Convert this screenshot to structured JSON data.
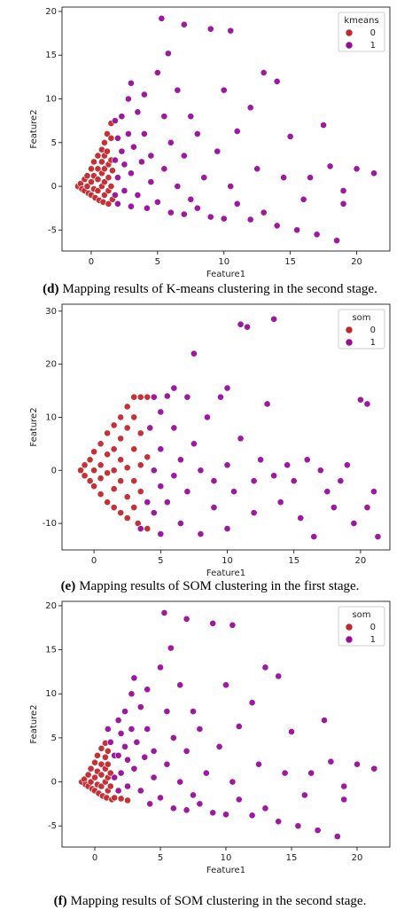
{
  "chart_data": [
    {
      "type": "scatter",
      "caption_label": "(d)",
      "caption": "Mapping results of K-means clustering in the second stage.",
      "x_label": "Feature1",
      "y_label": "Feature2",
      "legend_title": "kmeans",
      "legend": "upper right",
      "xlim": [
        -2.2,
        22.5
      ],
      "ylim": [
        -7.4,
        20.5
      ],
      "xticks": [
        0,
        5,
        10,
        15,
        20
      ],
      "yticks": [
        -5,
        0,
        5,
        10,
        15,
        20
      ],
      "series": [
        {
          "name": "0",
          "color": "#c1272d",
          "x": [
            -1,
            -0.8,
            -0.7,
            -0.5,
            -0.5,
            -0.3,
            -0.3,
            -0.2,
            0,
            0,
            0,
            0.2,
            0.2,
            0.2,
            0.3,
            0.5,
            0.5,
            0.5,
            0.5,
            0.6,
            0.8,
            0.8,
            0.8,
            0.8,
            0.9,
            1,
            1,
            1,
            1,
            1,
            1.2,
            1.2,
            1.3,
            1.3,
            1.3,
            1.3,
            1.5,
            1.5,
            1.5,
            1.5,
            1.6,
            1.6
          ],
          "values": [
            0,
            0.3,
            -0.3,
            0.8,
            -0.5,
            1.2,
            0,
            -0.8,
            2,
            0.5,
            -1,
            2.8,
            1.2,
            -0.3,
            -1.3,
            3.5,
            2,
            0.8,
            -0.5,
            -1.6,
            4.2,
            2.8,
            1.5,
            0,
            -1.8,
            5,
            3.5,
            2,
            0.5,
            -1,
            6,
            4,
            2.5,
            1,
            -0.5,
            -2,
            7.2,
            5.5,
            3,
            0,
            -1.5,
            1.8
          ]
        },
        {
          "name": "1",
          "color": "#980d98",
          "x": [
            1.8,
            1.8,
            1.8,
            2,
            2,
            2,
            2.3,
            2.3,
            2.5,
            2.5,
            2.8,
            2.8,
            3,
            3,
            3,
            3.2,
            3.5,
            3.5,
            3.8,
            4,
            4,
            4.2,
            4.5,
            4.5,
            5,
            5,
            5.3,
            5.5,
            5.5,
            5.8,
            6,
            6,
            6.5,
            6.5,
            7,
            7,
            7,
            7.5,
            7.5,
            8,
            8,
            8.5,
            9,
            9,
            9.5,
            10,
            10,
            10.5,
            10.5,
            11,
            11,
            12,
            12,
            12.5,
            13,
            13,
            14,
            14,
            14.5,
            15,
            15.5,
            16,
            16.5,
            17,
            17.5,
            18,
            18.5,
            19,
            19,
            20,
            21.3
          ],
          "values": [
            7.5,
            3,
            -1,
            5.5,
            1,
            -2,
            8,
            4,
            -0.5,
            2.5,
            10,
            6,
            11.8,
            -2.3,
            1.5,
            4.5,
            8.5,
            -1,
            2.8,
            6,
            10.5,
            -2.5,
            0.5,
            3.5,
            13,
            -1.8,
            19.2,
            8,
            2,
            15.2,
            -3,
            5,
            11,
            0,
            18.5,
            -3.2,
            3.5,
            8,
            -1.5,
            6,
            -2.5,
            1,
            18,
            -3.5,
            4,
            11,
            -3.7,
            17.8,
            0,
            6.3,
            -2,
            9,
            -3.8,
            2,
            13,
            -3,
            12,
            -4.5,
            1,
            5.7,
            -5,
            -1.5,
            1,
            -5.5,
            7,
            2.3,
            -6.2,
            -0.5,
            -2,
            2,
            1.5
          ]
        }
      ]
    },
    {
      "type": "scatter",
      "caption_label": "(e)",
      "caption": "Mapping results of SOM clustering in the first stage.",
      "x_label": "Feature1",
      "y_label": "Feature2",
      "legend_title": "som",
      "legend": "upper right",
      "xlim": [
        -2.4,
        22.2
      ],
      "ylim": [
        -15,
        31.3
      ],
      "xticks": [
        0,
        5,
        10,
        15,
        20
      ],
      "yticks": [
        -10,
        0,
        10,
        20,
        30
      ],
      "series": [
        {
          "name": "0",
          "color": "#c1272d",
          "x": [
            -1,
            -0.7,
            -0.7,
            -0.3,
            -0.3,
            0,
            0,
            0,
            0.5,
            0.5,
            0.5,
            0.5,
            1,
            1,
            1,
            1,
            1.5,
            1.5,
            1.5,
            1.5,
            1.5,
            2,
            2,
            2,
            2,
            2,
            2.5,
            2.5,
            2.5,
            2.5,
            2.5,
            3,
            3,
            3,
            3,
            3,
            3.3,
            3.5,
            3.5,
            3.5,
            3.5,
            4,
            4,
            4
          ],
          "values": [
            0,
            1,
            -1,
            2,
            -2,
            0,
            3.5,
            -3,
            5,
            1,
            -1.5,
            -4.5,
            7,
            3,
            -0.5,
            -6,
            8.5,
            4,
            0,
            -3.5,
            -7,
            10,
            6,
            2,
            -2,
            -8,
            12,
            8,
            0.5,
            -5,
            -9,
            13.8,
            10,
            4,
            -2,
            -7,
            -10,
            13.8,
            7,
            1,
            -4,
            13.8,
            2.5,
            -11
          ]
        },
        {
          "name": "1",
          "color": "#980d98",
          "x": [
            3.5,
            4,
            4.2,
            4.5,
            4.5,
            4.5,
            5,
            5,
            5,
            5,
            5.5,
            5.5,
            6,
            6,
            6,
            6.5,
            6.5,
            7,
            7,
            7.5,
            7.5,
            8,
            8,
            8.5,
            9,
            9,
            9.5,
            10,
            10,
            10,
            10.5,
            11,
            11.5,
            11,
            12,
            12,
            12.5,
            13,
            13.5,
            13.5,
            14,
            14.5,
            15,
            15.5,
            16,
            16.5,
            17,
            17.5,
            18,
            18.5,
            19,
            19.5,
            20,
            20.5,
            20.5,
            21,
            21.3
          ],
          "values": [
            -11,
            -6,
            8,
            13.8,
            0,
            -8,
            11,
            4,
            -3,
            -12,
            14,
            -6,
            8,
            -1,
            15.5,
            2,
            -10,
            13.8,
            -4,
            22,
            5,
            -12,
            0,
            10,
            -2,
            -7,
            13.8,
            15.5,
            1,
            -11,
            -4,
            27.5,
            27,
            6,
            -2,
            -8,
            2,
            12.5,
            -1,
            28.5,
            -6,
            1,
            -2,
            -9,
            2,
            -12.5,
            0,
            -4,
            -7,
            -2,
            1,
            -10,
            13.3,
            12.5,
            -7,
            -4,
            -12.5
          ]
        }
      ]
    },
    {
      "type": "scatter",
      "caption_label": "(f)",
      "caption": "Mapping results of SOM clustering in the second stage.",
      "x_label": "Feature1",
      "y_label": "Feature2",
      "legend_title": "som",
      "legend": "upper right",
      "xlim": [
        -2.5,
        22.5
      ],
      "ylim": [
        -7.4,
        20.5
      ],
      "xticks": [
        0,
        5,
        10,
        15,
        20
      ],
      "yticks": [
        -5,
        0,
        5,
        10,
        15,
        20
      ],
      "series": [
        {
          "name": "0",
          "color": "#c1272d",
          "x": [
            -1,
            -0.8,
            -0.7,
            -0.5,
            -0.5,
            -0.3,
            -0.3,
            -0.2,
            0,
            0,
            0,
            0.2,
            0.2,
            0.2,
            0.3,
            0.5,
            0.5,
            0.5,
            0.5,
            0.6,
            0.8,
            0.8,
            0.8,
            0.8,
            0.9,
            1,
            1,
            1,
            1,
            1.2,
            1.2,
            1.3,
            1.5,
            2,
            2.5
          ],
          "values": [
            0,
            0.3,
            -0.3,
            0.8,
            -0.5,
            1.5,
            0,
            -0.8,
            2.2,
            0.5,
            -1,
            3,
            1.2,
            -0.3,
            -1.3,
            3.8,
            2,
            0.8,
            -0.5,
            -1.6,
            4.4,
            2.8,
            1.5,
            0,
            -1.8,
            3.5,
            2,
            0.5,
            -1,
            1,
            -0.5,
            -2,
            -1.8,
            -1.9,
            -2.1
          ]
        },
        {
          "name": "1",
          "color": "#980d98",
          "x": [
            1,
            1.2,
            1.5,
            1.5,
            1.8,
            1.8,
            1.8,
            2,
            2,
            2.3,
            2.3,
            2.5,
            2.5,
            2.8,
            2.8,
            3,
            3,
            3.2,
            3.5,
            3.5,
            3.8,
            4,
            4,
            4.2,
            4.5,
            4.5,
            5,
            5,
            5.3,
            5.5,
            5.5,
            5.8,
            6,
            6,
            6.5,
            6.5,
            7,
            7,
            7,
            7.5,
            7.5,
            8,
            8,
            8.5,
            9,
            9,
            9.5,
            10,
            10,
            10.5,
            10.5,
            11,
            11,
            12,
            12,
            12.5,
            13,
            13,
            14,
            14,
            14.5,
            15,
            15.5,
            16,
            16.5,
            17,
            17.5,
            18,
            18.5,
            19,
            19,
            20,
            21.3
          ],
          "values": [
            6,
            4.5,
            3,
            0.5,
            7,
            3,
            -1,
            5.5,
            1,
            8,
            4,
            -0.5,
            2.5,
            10,
            6,
            11.8,
            1.5,
            4.5,
            8.5,
            -1,
            2.8,
            6,
            10.5,
            -2.5,
            0.5,
            3.5,
            13,
            -1.8,
            19.2,
            8,
            2,
            15.2,
            -3,
            5,
            11,
            0,
            18.5,
            -3.2,
            3.5,
            8,
            -1.5,
            6,
            -2.5,
            1,
            18,
            -3.5,
            4,
            11,
            -3.7,
            17.8,
            0,
            6.3,
            -2,
            9,
            -3.8,
            2,
            13,
            -3,
            12,
            -4.5,
            1,
            5.7,
            -5,
            -1.5,
            1,
            -5.5,
            7,
            2.3,
            -6.2,
            -0.5,
            -2,
            2,
            1.5
          ]
        }
      ]
    }
  ]
}
